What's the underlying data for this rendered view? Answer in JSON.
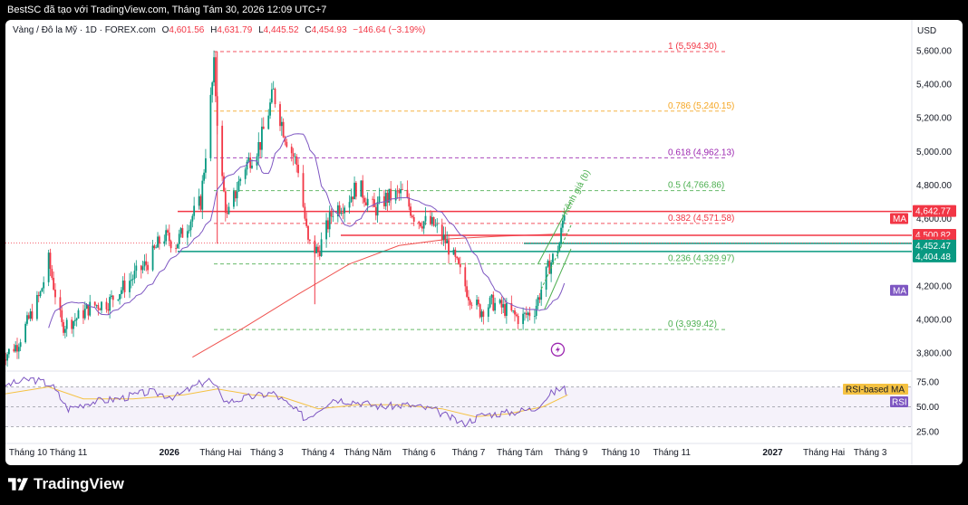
{
  "header": {
    "text": "BestSC đã tạo với TradingView.com, Tháng Tám 30, 2026 12:09 UTC+7"
  },
  "legend": {
    "symbol": "Vàng / Đô la Mỹ · 1D · FOREX.com",
    "open_label": "O",
    "open": "4,601.56",
    "high_label": "H",
    "high": "4,631.79",
    "low_label": "L",
    "low": "4,445.52",
    "close_label": "C",
    "close": "4,454.93",
    "change": "−146.64 (−3.19%)"
  },
  "currency": "USD",
  "colors": {
    "up": "#089981",
    "down": "#f23645",
    "ma": "#7e57c2",
    "ma_long": "#ef5350",
    "fib_red": "#f23645",
    "fib_orange": "#f5a623",
    "fib_purple": "#9c27b0",
    "fib_green": "#4caf50",
    "rsi": "#7e57c2",
    "rsi_ma": "#f5c242",
    "channel": "#4caf50"
  },
  "chart_data": {
    "type": "candlestick",
    "y_axis": {
      "range": [
        3700,
        5660
      ],
      "ticks": [
        "5,600.00",
        "5,400.00",
        "5,200.00",
        "5,000.00",
        "4,800.00",
        "4,600.00",
        "4,400.00",
        "4,200.00",
        "4,000.00",
        "3,800.00"
      ]
    },
    "x_axis": {
      "ticks": [
        {
          "label": "Tháng 10",
          "date": "2025-10-01"
        },
        {
          "label": "Tháng 11",
          "date": "2025-11-01"
        },
        {
          "label": "2026",
          "date": "2026-01-01"
        },
        {
          "label": "Tháng Hai",
          "date": "2026-02-01"
        },
        {
          "label": "Tháng 3",
          "date": "2026-03-01"
        },
        {
          "label": "Tháng 4",
          "date": "2026-04-01"
        },
        {
          "label": "Tháng Năm",
          "date": "2026-05-01"
        },
        {
          "label": "Tháng 6",
          "date": "2026-06-01"
        },
        {
          "label": "Tháng 7",
          "date": "2026-07-01"
        },
        {
          "label": "Tháng Tám",
          "date": "2026-08-01"
        },
        {
          "label": "Tháng 9",
          "date": "2026-09-01"
        },
        {
          "label": "Tháng 10",
          "date": "2026-10-01"
        },
        {
          "label": "Tháng 11",
          "date": "2026-11-01"
        },
        {
          "label": "2027",
          "date": "2027-01-01"
        },
        {
          "label": "Tháng Hai",
          "date": "2027-02-01"
        },
        {
          "label": "Tháng 3",
          "date": "2027-03-01"
        }
      ]
    },
    "price_path": [
      [
        "2025-09-20",
        3760
      ],
      [
        "2025-10-01",
        3850
      ],
      [
        "2025-10-15",
        4150
      ],
      [
        "2025-10-20",
        4350
      ],
      [
        "2025-10-28",
        3960
      ],
      [
        "2025-11-05",
        4000
      ],
      [
        "2025-11-15",
        4080
      ],
      [
        "2025-11-25",
        4100
      ],
      [
        "2025-12-05",
        4200
      ],
      [
        "2025-12-20",
        4350
      ],
      [
        "2025-12-28",
        4500
      ],
      [
        "2026-01-05",
        4450
      ],
      [
        "2026-01-20",
        4700
      ],
      [
        "2026-01-28",
        5500
      ],
      [
        "2026-02-01",
        4900
      ],
      [
        "2026-02-05",
        4600
      ],
      [
        "2026-02-15",
        4900
      ],
      [
        "2026-02-25",
        5050
      ],
      [
        "2026-03-05",
        5350
      ],
      [
        "2026-03-12",
        5100
      ],
      [
        "2026-03-20",
        4900
      ],
      [
        "2026-03-26",
        4450
      ],
      [
        "2026-04-01",
        4400
      ],
      [
        "2026-04-10",
        4650
      ],
      [
        "2026-04-18",
        4700
      ],
      [
        "2026-04-25",
        4800
      ],
      [
        "2026-05-05",
        4650
      ],
      [
        "2026-05-12",
        4720
      ],
      [
        "2026-05-22",
        4750
      ],
      [
        "2026-05-30",
        4600
      ],
      [
        "2026-06-10",
        4560
      ],
      [
        "2026-06-18",
        4450
      ],
      [
        "2026-06-25",
        4300
      ],
      [
        "2026-07-01",
        4150
      ],
      [
        "2026-07-08",
        4050
      ],
      [
        "2026-07-15",
        4100
      ],
      [
        "2026-07-25",
        4050
      ],
      [
        "2026-08-01",
        4000
      ],
      [
        "2026-08-10",
        4060
      ],
      [
        "2026-08-18",
        4300
      ],
      [
        "2026-08-25",
        4450
      ],
      [
        "2026-08-28",
        4650
      ],
      [
        "2026-08-30",
        4455
      ]
    ],
    "spikes": [
      {
        "date": "2026-01-30",
        "high": 5594.3,
        "low": 4450
      },
      {
        "date": "2026-03-30",
        "high": 4500,
        "low": 4090
      }
    ],
    "moving_averages": [
      {
        "name": "MA",
        "label_price": "4,600.00"
      },
      {
        "name": "MA",
        "label_price": "4,200.00"
      }
    ],
    "fibonacci": [
      {
        "ratio": "1",
        "price": 5594.3,
        "label": "1 (5,594.30)",
        "color": "#f23645"
      },
      {
        "ratio": "0.786",
        "price": 5240.15,
        "label": "0.786 (5,240.15)",
        "color": "#f5a623"
      },
      {
        "ratio": "0.618",
        "price": 4962.13,
        "label": "0.618 (4,962.13)",
        "color": "#9c27b0"
      },
      {
        "ratio": "0.5",
        "price": 4766.86,
        "label": "0.5 (4,766.86)",
        "color": "#4caf50"
      },
      {
        "ratio": "0.382",
        "price": 4571.58,
        "label": "0.382 (4,571.58)",
        "color": "#f23645"
      },
      {
        "ratio": "0.236",
        "price": 4329.97,
        "label": "0.236 (4,329.97)",
        "color": "#4caf50"
      },
      {
        "ratio": "0",
        "price": 3939.42,
        "label": "0 (3,939.42)",
        "color": "#4caf50"
      }
    ],
    "horizontal_levels": [
      {
        "price": 4642.77,
        "color": "#f23645"
      },
      {
        "price": 4500.82,
        "color": "#f23645"
      },
      {
        "price": 4452.47,
        "color": "#089981"
      },
      {
        "price": 4404.48,
        "color": "#089981"
      }
    ],
    "price_tags": [
      {
        "text": "4,642.77",
        "price": 4642.77,
        "color": "#f23645"
      },
      {
        "text": "4,500.82",
        "price": 4500.82,
        "color": "#f23645"
      },
      {
        "text": "4,454.93",
        "price": 4454.93,
        "color": "#f23645"
      },
      {
        "text": "4,452.47",
        "price": 4452.47,
        "color": "#089981"
      },
      {
        "text": "4,404.48",
        "price": 4404.48,
        "color": "#089981"
      }
    ],
    "ma_tags": [
      {
        "text": "MA",
        "price": 4600,
        "color": "#f23645"
      },
      {
        "text": "MA",
        "price": 4200,
        "color": "#7e57c2"
      }
    ],
    "channel_annotation": "Kênh giá (b)",
    "rsi": {
      "range": [
        15,
        90
      ],
      "ticks": [
        "75.00",
        "50.00",
        "25.00"
      ],
      "levels": [
        70,
        50,
        30
      ],
      "ma_label": "RSI-based MA",
      "rsi_label": "RSI",
      "path": [
        [
          "2025-09-20",
          70
        ],
        [
          "2025-10-10",
          78
        ],
        [
          "2025-10-22",
          72
        ],
        [
          "2025-11-01",
          48
        ],
        [
          "2025-11-15",
          55
        ],
        [
          "2025-12-01",
          58
        ],
        [
          "2025-12-20",
          65
        ],
        [
          "2026-01-05",
          60
        ],
        [
          "2026-01-25",
          78
        ],
        [
          "2026-02-05",
          55
        ],
        [
          "2026-02-20",
          60
        ],
        [
          "2026-03-05",
          64
        ],
        [
          "2026-03-25",
          38
        ],
        [
          "2026-04-10",
          58
        ],
        [
          "2026-04-25",
          55
        ],
        [
          "2026-05-10",
          50
        ],
        [
          "2026-05-25",
          52
        ],
        [
          "2026-06-10",
          47
        ],
        [
          "2026-06-28",
          33
        ],
        [
          "2026-07-10",
          42
        ],
        [
          "2026-07-25",
          44
        ],
        [
          "2026-08-10",
          48
        ],
        [
          "2026-08-20",
          63
        ],
        [
          "2026-08-28",
          70
        ],
        [
          "2026-08-30",
          56
        ]
      ],
      "ma_path": [
        [
          "2025-09-20",
          62
        ],
        [
          "2025-10-20",
          70
        ],
        [
          "2025-11-10",
          58
        ],
        [
          "2025-12-10",
          58
        ],
        [
          "2026-01-10",
          62
        ],
        [
          "2026-01-30",
          68
        ],
        [
          "2026-02-20",
          62
        ],
        [
          "2026-03-10",
          60
        ],
        [
          "2026-04-01",
          48
        ],
        [
          "2026-04-25",
          52
        ],
        [
          "2026-05-20",
          52
        ],
        [
          "2026-06-15",
          48
        ],
        [
          "2026-07-05",
          40
        ],
        [
          "2026-07-25",
          43
        ],
        [
          "2026-08-15",
          50
        ],
        [
          "2026-08-30",
          62
        ]
      ]
    }
  },
  "footer": {
    "brand": "TradingView"
  }
}
